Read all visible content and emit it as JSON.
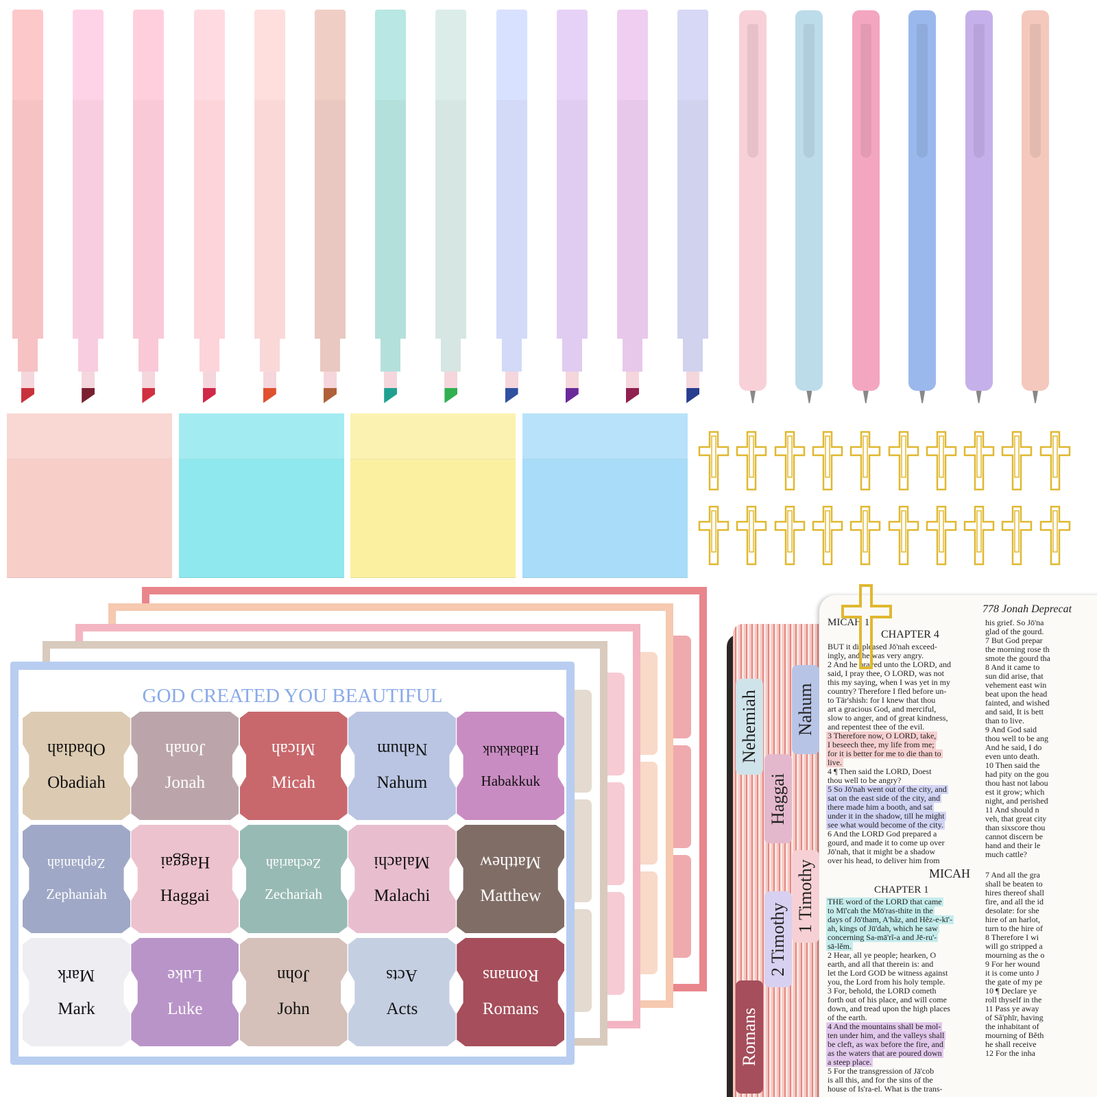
{
  "highlighters": [
    {
      "body": "#f6c2c4",
      "tip": "#c8323c"
    },
    {
      "body": "#f8cde0",
      "tip": "#7a2030"
    },
    {
      "body": "#f9c9d8",
      "tip": "#d03040"
    },
    {
      "body": "#fcd4da",
      "tip": "#d02848"
    },
    {
      "body": "#fad8d8",
      "tip": "#e0502e"
    },
    {
      "body": "#e8c8c0",
      "tip": "#b0603a"
    },
    {
      "body": "#b4e0dc",
      "tip": "#20a090"
    },
    {
      "body": "#d6e6e2",
      "tip": "#30b050"
    },
    {
      "body": "#d2daf8",
      "tip": "#3050a0"
    },
    {
      "body": "#e0ccf0",
      "tip": "#6a2a9a"
    },
    {
      "body": "#e8c8ea",
      "tip": "#902050"
    },
    {
      "body": "#d0d2ee",
      "tip": "#283c90"
    }
  ],
  "pens": [
    "#f8d0d8",
    "#bcdcea",
    "#f4a6c0",
    "#9ab8ec",
    "#c6b0ea",
    "#f4c8bc"
  ],
  "sticky_notes": [
    "#f8cfc8",
    "#8ee8ee",
    "#fbf0a0",
    "#a8dcf8"
  ],
  "clip_color": "#e0b830",
  "sticker_sheet": {
    "title": "GOD CREATED YOU BEAUTIFUL",
    "title_color": "#8aaae8",
    "border_color": "#b8cdf0",
    "tabs": [
      {
        "label": "Obadiah",
        "bg": "#dccbb2",
        "fg": "#111"
      },
      {
        "label": "Jonah",
        "bg": "#bba5aa",
        "fg": "#fff"
      },
      {
        "label": "Micah",
        "bg": "#c8686c",
        "fg": "#fff"
      },
      {
        "label": "Nahum",
        "bg": "#b9c5e2",
        "fg": "#111"
      },
      {
        "label": "Habakkuk",
        "bg": "#c98cc2",
        "fg": "#111"
      },
      {
        "label": "Zephaniah",
        "bg": "#9fa8c6",
        "fg": "#fff"
      },
      {
        "label": "Haggai",
        "bg": "#ecc2ce",
        "fg": "#111"
      },
      {
        "label": "Zechariah",
        "bg": "#98bab4",
        "fg": "#fff"
      },
      {
        "label": "Malachi",
        "bg": "#e8bece",
        "fg": "#111"
      },
      {
        "label": "Matthew",
        "bg": "#806d66",
        "fg": "#fff"
      },
      {
        "label": "Mark",
        "bg": "#ededf2",
        "fg": "#111"
      },
      {
        "label": "Luke",
        "bg": "#b994c8",
        "fg": "#fff"
      },
      {
        "label": "John",
        "bg": "#d5c1ba",
        "fg": "#111"
      },
      {
        "label": "Acts",
        "bg": "#c5cfe2",
        "fg": "#111"
      },
      {
        "label": "Romans",
        "bg": "#a64e5b",
        "fg": "#fff"
      }
    ]
  },
  "back_sheets": [
    "#e8868c",
    "#f6c9b0",
    "#f4b5c2",
    "#d8cabc"
  ],
  "bible": {
    "running_head": "778 Jonah Deprecat",
    "book_head": "MICAH 1",
    "chapter4": "CHAPTER 4",
    "left_lines": [
      "BUT it displeased Jō'nah exceed-",
      "ingly, and he was very angry.",
      "2 And he prayed unto the LORD, and",
      "said, I pray thee, O LORD, was not",
      "this my saying, when I was yet in my",
      "country? Therefore I fled before un-",
      "to Tär'shish: for I knew that thou",
      "art a gracious God, and merciful,",
      "slow to anger, and of great kindness,",
      "and repentest thee of the evil.",
      "3 Therefore now, O LORD, take,",
      "I beseech thee, my life from me;",
      "for it is better for me to die than to",
      "live.",
      "4 ¶ Then said the LORD, Doest",
      "thou well to be angry?",
      "5 So Jō'nah went out of the city, and",
      "sat on the east side of the city, and",
      "there made him a booth, and sat",
      "under it in the shadow, till he might",
      "see what would become of the city.",
      "6 And the LORD God prepared a",
      "gourd, and made it to come up over",
      "Jō'nah, that it might be a shadow",
      "over his head, to deliver him from"
    ],
    "right_lines": [
      "his grief. So Jō'na",
      "glad of the gourd.",
      "7 But God prepar",
      "the morning rose th",
      "smote the gourd tha",
      "8 And it came to",
      "sun did arise, that",
      "vehement east win",
      "beat upon the head",
      "fainted, and wished",
      "and said, It is bett",
      "than to live.",
      "9 And God said",
      "thou well to be ang",
      "And he said, I do",
      "even unto death.",
      "10 Then said the",
      "had pity on the gou",
      "thou hast not labou",
      "est it grow; which",
      "night, and perished",
      "11 And should n",
      "veh, that great city",
      "than sixscore thou",
      "cannot discern be",
      "hand and their le",
      "much cattle?"
    ],
    "micah_head": "MICAH",
    "chapter1": "CHAPTER 1",
    "left_lines2": [
      "THE word of the LORD that came",
      "to Mī'cah the Mō'ras-thite in the",
      "days of Jō'tham, A'hăz, and Hĕz-e-kī'-",
      "ah, kings of Jū'dah, which he saw",
      "concerning Sa-mā'rĭ-a and Jē-ru'-",
      "sā-lĕm.",
      "2 Hear, all ye people; hearken, O",
      "earth, and all that therein is: and",
      "let the Lord GOD be witness against",
      "you, the Lord from his holy temple.",
      "3 For, behold, the LORD cometh",
      "forth out of his place, and will come",
      "down, and tread upon the high places",
      "of the earth.",
      "4 And the mountains shall be mol-",
      "ten under him, and the valleys shall",
      "be cleft, as wax before the fire, and",
      "as the waters that are poured down",
      "a steep place.",
      "5 For the transgression of Jā'cob",
      "is all this, and for the sins of the",
      "house of Is'ra-el. What is the trans-"
    ],
    "right_lines2": [
      "7 And all the gra",
      "shall be beaten to",
      "hires thereof shall",
      "fire, and all the id",
      "desolate: for she",
      "hire of an harlot,",
      "turn to the hire of",
      "8 Therefore I wi",
      "will go stripped a",
      "mourning as the o",
      "9 For her wound",
      "it is come unto J",
      "the gate of my pe",
      "10 ¶ Declare ye",
      "roll thyself in the",
      "11 Pass ye away",
      "of Să'phīr, having",
      "the inhabitant of",
      "mourning of Bĕth",
      "he shall receive",
      "12 For the inha"
    ],
    "tabs": [
      {
        "label": "Nehemiah",
        "bg": "#cfe3ea"
      },
      {
        "label": "Haggai",
        "bg": "#e4b8cc"
      },
      {
        "label": "Nahum",
        "bg": "#b8c4e6"
      },
      {
        "label": "1 Timothy",
        "bg": "#f6d0d4"
      },
      {
        "label": "2 Timothy",
        "bg": "#d8d0f0"
      },
      {
        "label": "Romans",
        "bg": "#a64e5b"
      }
    ]
  }
}
